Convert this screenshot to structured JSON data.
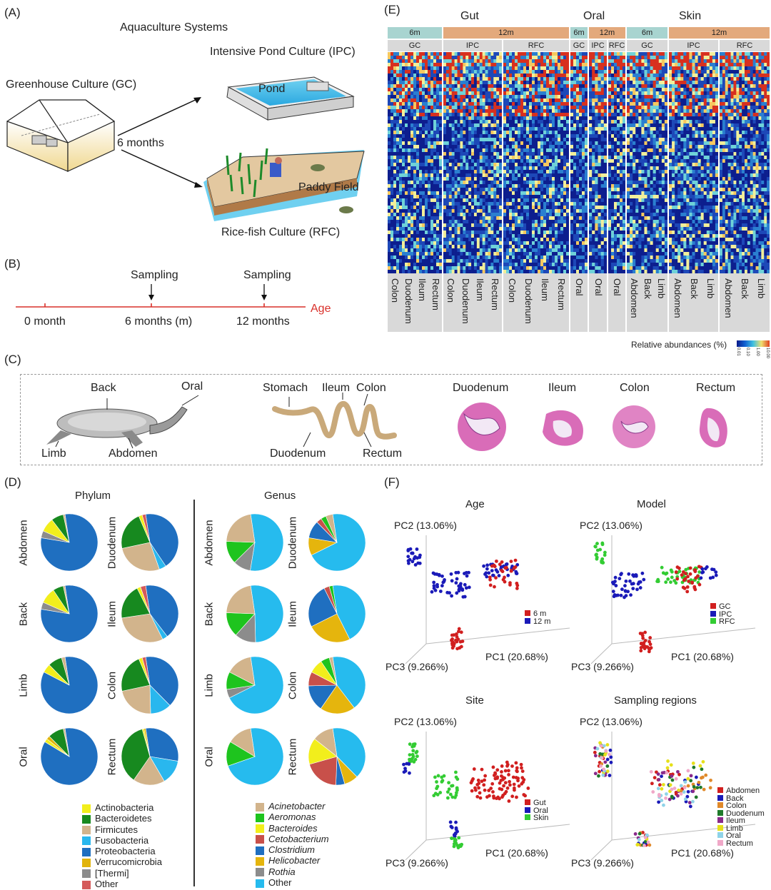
{
  "panels": {
    "A": "(A)",
    "B": "(B)",
    "C": "(C)",
    "D": "(D)",
    "E": "(E)",
    "F": "(F)"
  },
  "panelA": {
    "title": "Aquaculture Systems",
    "gc": "Greenhouse Culture (GC)",
    "ipc": "Intensive Pond Culture (IPC)",
    "pond": "Pond",
    "arrow_label": "6 months",
    "paddy": "Paddy Field",
    "rfc": "Rice-fish Culture (RFC)"
  },
  "panelB": {
    "sampling1": "Sampling",
    "sampling2": "Sampling",
    "t0": "0 month",
    "t6": "6 months (m)",
    "t12": "12 months",
    "axis": "Age"
  },
  "panelC": {
    "back": "Back",
    "oral": "Oral",
    "limb": "Limb",
    "abdomen": "Abdomen",
    "stomach": "Stomach",
    "ileum": "Ileum",
    "colon": "Colon",
    "duodenum": "Duodenum",
    "rectum": "Rectum",
    "h_duodenum": "Duodenum",
    "h_ileum": "Ileum",
    "h_colon": "Colon",
    "h_rectum": "Rectum"
  },
  "panelD": {
    "phylum_title": "Phylum",
    "genus_title": "Genus",
    "row_labels_left": [
      "Abdomen",
      "Back",
      "Limb",
      "Oral"
    ],
    "row_labels_right": [
      "Duodenum",
      "Ileum",
      "Colon",
      "Rectum"
    ],
    "phylum_legend": [
      "Actinobacteria",
      "Bacteroidetes",
      "Firmicutes",
      "Fusobacteria",
      "Proteobacteria",
      "Verrucomicrobia",
      "[Thermi]",
      "Other"
    ],
    "phylum_colors": [
      "#f2ee1c",
      "#17891f",
      "#d2b48c",
      "#29b7ee",
      "#1f6fc0",
      "#e1b40c",
      "#8c8c8c",
      "#d55a5a"
    ],
    "genus_legend": [
      "Acinetobacter",
      "Aeromonas",
      "Bacteroides",
      "Cetobacterium",
      "Clostridium",
      "Helicobacter",
      "Rothia",
      "Other"
    ],
    "genus_italic": [
      true,
      true,
      true,
      true,
      true,
      true,
      true,
      false
    ],
    "genus_colors": [
      "#d2b48c",
      "#1ec41e",
      "#f2ee1c",
      "#c8504a",
      "#1f6fc0",
      "#e5b50d",
      "#8c8c8c",
      "#26bbee"
    ]
  },
  "panelE": {
    "groups": [
      "Gut",
      "Oral",
      "Skin"
    ],
    "age_bars": [
      "6m",
      "12m",
      "6m",
      "12m",
      "6m",
      "12m"
    ],
    "models": [
      "GC",
      "IPC",
      "RFC",
      "GC",
      "IPC",
      "RFC",
      "GC",
      "IPC",
      "RFC"
    ],
    "sites_gut_gc": [
      "Colon",
      "Duodenum",
      "Ileum",
      "Rectum"
    ],
    "sites_gut_ipc": [
      "Colon",
      "Duodenum",
      "Ileum",
      "Rectum"
    ],
    "sites_gut_rfc": [
      "Colon",
      "Duodenum",
      "Ileum",
      "Rectum"
    ],
    "sites_oral": [
      "Oral",
      "Oral",
      "Oral"
    ],
    "sites_skin_gc": [
      "Abdomen",
      "Back",
      "Limb"
    ],
    "sites_skin_ipc": [
      "Abdomen",
      "Back",
      "Limb"
    ],
    "sites_skin_rfc": [
      "Abdomen",
      "Back",
      "Limb"
    ],
    "legend_label": "Relative abundances (%)",
    "legend_ticks": [
      "0.01",
      "0.10",
      "1.00",
      "10.00"
    ]
  },
  "panelF": {
    "plots": [
      {
        "title": "Age",
        "pc1": "PC1 (20.68%)",
        "pc2": "PC2 (13.06%)",
        "pc3": "PC3 (9.266%)",
        "legend": [
          "6 m",
          "12 m"
        ],
        "colors": [
          "#d11f1f",
          "#1a1ab8"
        ]
      },
      {
        "title": "Model",
        "pc1": "PC1 (20.68%)",
        "pc2": "PC2 (13.06%)",
        "pc3": "PC3 (9.266%)",
        "legend": [
          "GC",
          "IPC",
          "RFC"
        ],
        "colors": [
          "#d11f1f",
          "#1a1ab8",
          "#33cc33"
        ]
      },
      {
        "title": "Site",
        "pc1": "PC1 (20.68%)",
        "pc2": "PC2 (13.06%)",
        "pc3": "PC3 (9.266%)",
        "legend": [
          "Gut",
          "Oral",
          "Skin"
        ],
        "colors": [
          "#d11f1f",
          "#1a1ab8",
          "#33cc33"
        ]
      },
      {
        "title": "Sampling regions",
        "pc1": "PC1 (20.68%)",
        "pc2": "PC2 (13.06%)",
        "pc3": "PC3 (9.266%)",
        "legend": [
          "Abdomen",
          "Back",
          "Colon",
          "Duodenum",
          "Ileum",
          "Limb",
          "Oral",
          "Rectum"
        ],
        "colors": [
          "#d11f1f",
          "#1a1ab8",
          "#e0892a",
          "#1f7a2a",
          "#8a2a8a",
          "#e6e01a",
          "#8fd3e8",
          "#f0a8c8"
        ]
      }
    ]
  }
}
